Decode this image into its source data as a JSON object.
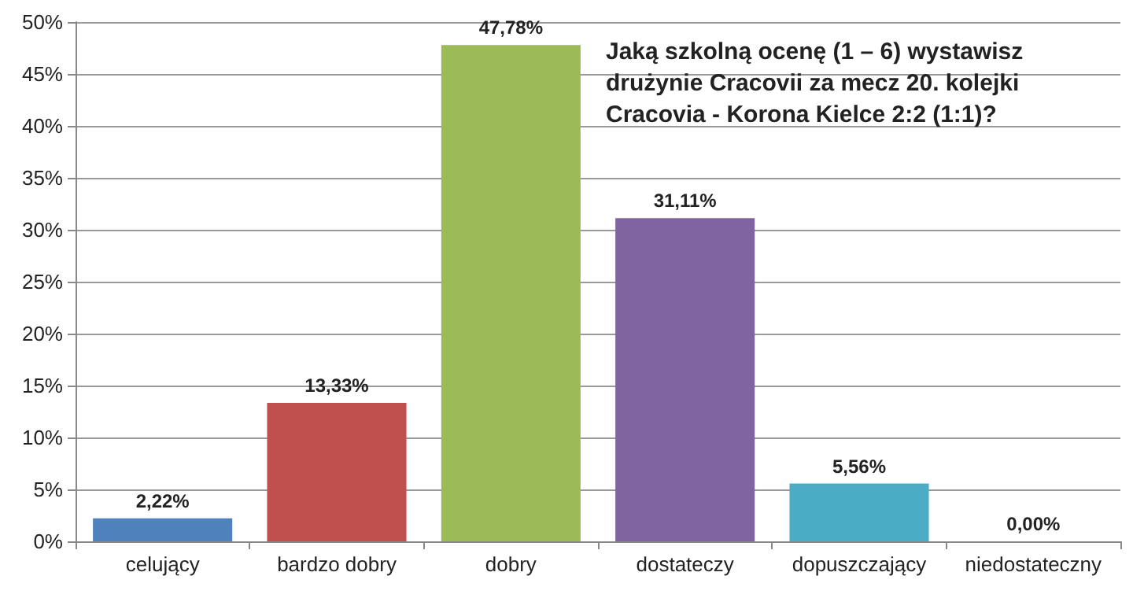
{
  "chart_data": {
    "type": "bar",
    "title": "Jaką szkolną ocenę (1 – 6) wystawisz drużynie Cracovii za mecz 20. kolejki Cracovia - Korona Kielce 2:2 (1:1)?",
    "categories": [
      "celujący",
      "bardzo dobry",
      "dobry",
      "dostateczy",
      "dopuszczający",
      "niedostateczny"
    ],
    "values": [
      2.22,
      13.33,
      47.78,
      31.11,
      5.56,
      0
    ],
    "colors": [
      "#4f81bd",
      "#c0504d",
      "#9bbb59",
      "#8064a2",
      "#4bacc6",
      "#f79646"
    ],
    "value_labels": [
      "2,22%",
      "13,33%",
      "47,78%",
      "31,11%",
      "5,56%",
      "0,00%"
    ],
    "ylim": [
      0,
      50
    ],
    "yticks": [
      {
        "value": 0,
        "label": "0%"
      },
      {
        "value": 5,
        "label": "5%"
      },
      {
        "value": 10,
        "label": "10%"
      },
      {
        "value": 15,
        "label": "15%"
      },
      {
        "value": 20,
        "label": "20%"
      },
      {
        "value": 25,
        "label": "25%"
      },
      {
        "value": 30,
        "label": "30%"
      },
      {
        "value": 35,
        "label": "35%"
      },
      {
        "value": 40,
        "label": "40%"
      },
      {
        "value": 45,
        "label": "45%"
      },
      {
        "value": 50,
        "label": "50%"
      }
    ],
    "grid": "y"
  }
}
